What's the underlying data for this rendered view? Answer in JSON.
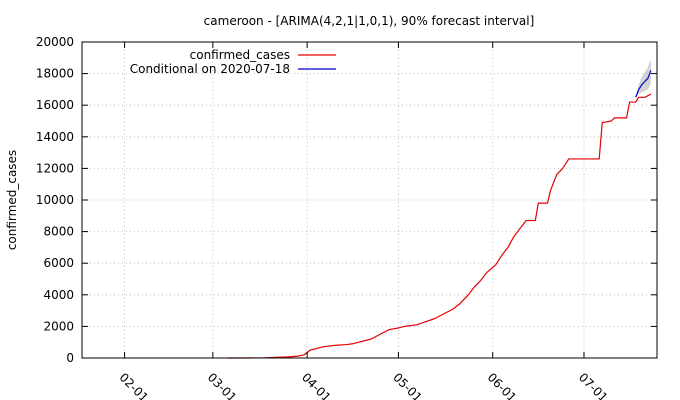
{
  "chart_data": {
    "type": "line",
    "title": "cameroon -  [ARIMA(4,2,1|1,0,1), 90% forecast interval]",
    "xlabel": "",
    "ylabel": "confirmed_cases",
    "x_axis": "date",
    "xlim": [
      "2020-01-18",
      "2020-07-25"
    ],
    "ylim": [
      0,
      20000
    ],
    "x_ticks": [
      {
        "date": "2020-02-01",
        "label": "02-01"
      },
      {
        "date": "2020-03-01",
        "label": "03-01"
      },
      {
        "date": "2020-04-01",
        "label": "04-01"
      },
      {
        "date": "2020-05-01",
        "label": "05-01"
      },
      {
        "date": "2020-06-01",
        "label": "06-01"
      },
      {
        "date": "2020-07-01",
        "label": "07-01"
      }
    ],
    "y_ticks": [
      0,
      2000,
      4000,
      6000,
      8000,
      10000,
      12000,
      14000,
      16000,
      18000,
      20000
    ],
    "y_tick_labels": [
      "0",
      "2000",
      "4000",
      "6000",
      "8000",
      "10000",
      "12000",
      "14000",
      "16000",
      "18000",
      "20000"
    ],
    "grid": true,
    "legend_position": "top-left",
    "legend_entries": [
      "confirmed_cases",
      "Conditional on 2020-07-18"
    ],
    "series": [
      {
        "name": "confirmed_cases",
        "color": "#e60000",
        "points": [
          [
            "2020-03-06",
            1
          ],
          [
            "2020-03-12",
            2
          ],
          [
            "2020-03-18",
            10
          ],
          [
            "2020-03-22",
            40
          ],
          [
            "2020-03-26",
            70
          ],
          [
            "2020-03-29",
            120
          ],
          [
            "2020-03-31",
            200
          ],
          [
            "2020-04-02",
            500
          ],
          [
            "2020-04-04",
            600
          ],
          [
            "2020-04-06",
            700
          ],
          [
            "2020-04-10",
            800
          ],
          [
            "2020-04-14",
            850
          ],
          [
            "2020-04-16",
            900
          ],
          [
            "2020-04-18",
            1000
          ],
          [
            "2020-04-20",
            1100
          ],
          [
            "2020-04-22",
            1200
          ],
          [
            "2020-04-24",
            1400
          ],
          [
            "2020-04-26",
            1600
          ],
          [
            "2020-04-28",
            1800
          ],
          [
            "2020-05-01",
            1900
          ],
          [
            "2020-05-03",
            2000
          ],
          [
            "2020-05-07",
            2100
          ],
          [
            "2020-05-10",
            2300
          ],
          [
            "2020-05-13",
            2500
          ],
          [
            "2020-05-16",
            2800
          ],
          [
            "2020-05-19",
            3100
          ],
          [
            "2020-05-21",
            3400
          ],
          [
            "2020-05-24",
            4000
          ],
          [
            "2020-05-26",
            4500
          ],
          [
            "2020-05-28",
            4900
          ],
          [
            "2020-05-30",
            5400
          ],
          [
            "2020-06-02",
            5900
          ],
          [
            "2020-06-04",
            6500
          ],
          [
            "2020-06-06",
            7000
          ],
          [
            "2020-06-08",
            7700
          ],
          [
            "2020-06-10",
            8200
          ],
          [
            "2020-06-12",
            8700
          ],
          [
            "2020-06-15",
            8700
          ],
          [
            "2020-06-16",
            9800
          ],
          [
            "2020-06-19",
            9800
          ],
          [
            "2020-06-20",
            10600
          ],
          [
            "2020-06-22",
            11600
          ],
          [
            "2020-06-24",
            12000
          ],
          [
            "2020-06-26",
            12600
          ],
          [
            "2020-07-06",
            12600
          ],
          [
            "2020-07-07",
            14900
          ],
          [
            "2020-07-10",
            15000
          ],
          [
            "2020-07-11",
            15200
          ],
          [
            "2020-07-15",
            15200
          ],
          [
            "2020-07-16",
            16200
          ],
          [
            "2020-07-18",
            16200
          ],
          [
            "2020-07-19",
            16500
          ],
          [
            "2020-07-21",
            16500
          ],
          [
            "2020-07-23",
            16700
          ]
        ]
      },
      {
        "name": "Conditional on 2020-07-18",
        "color": "#0000cc",
        "band_color": "#c0c0c0",
        "points": [
          [
            "2020-07-18",
            16500
          ],
          [
            "2020-07-19",
            17000
          ],
          [
            "2020-07-20",
            17300
          ],
          [
            "2020-07-21",
            17500
          ],
          [
            "2020-07-22",
            17700
          ],
          [
            "2020-07-23",
            18200
          ]
        ],
        "lower": [
          16500,
          16700,
          16800,
          16900,
          17000,
          17400
        ],
        "upper": [
          16500,
          17300,
          17800,
          18100,
          18400,
          18900
        ]
      }
    ]
  }
}
